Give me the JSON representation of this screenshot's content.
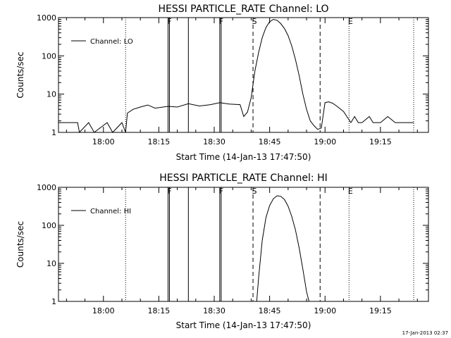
{
  "chart_data": [
    {
      "type": "line",
      "title": "HESSI PARTICLE_RATE Channel: LO",
      "xlabel": "Start Time (14-Jan-13 17:47:50)",
      "ylabel": "Counts/sec",
      "yscale": "log",
      "xlim": [
        "17:47:50",
        "19:28:00"
      ],
      "ylim": [
        1,
        1000
      ],
      "xticks": [
        "18:00",
        "18:15",
        "18:30",
        "18:45",
        "19:00",
        "19:15"
      ],
      "yticks": [
        "1",
        "10",
        "100",
        "1000"
      ],
      "legend": {
        "label": "Channel: LO",
        "placement": "top-left"
      },
      "markers": [
        {
          "label": "F",
          "time": "18:17:30",
          "style": "solid"
        },
        {
          "label": "",
          "time": "18:23:00",
          "style": "solid"
        },
        {
          "label": "F",
          "time": "18:31:30",
          "style": "solid"
        },
        {
          "label": "S",
          "time": "18:40:30",
          "style": "dashed"
        },
        {
          "label": "",
          "time": "18:58:40",
          "style": "dashed"
        },
        {
          "label": "E",
          "time": "19:06:30",
          "style": "dotted"
        },
        {
          "label": "",
          "time": "18:06:00",
          "style": "dotted"
        },
        {
          "label": "",
          "time": "19:24:00",
          "style": "dotted"
        }
      ],
      "series": [
        {
          "name": "Channel: LO",
          "x": [
            "17:47:50",
            "17:53:00",
            "17:53:30",
            "17:56:00",
            "17:57:30",
            "18:01:00",
            "18:02:30",
            "18:05:00",
            "18:06:00",
            "18:06:30",
            "18:08:00",
            "18:10:00",
            "18:12:00",
            "18:14:00",
            "18:17:30",
            "18:20:00",
            "18:23:00",
            "18:26:00",
            "18:29:00",
            "18:31:30",
            "18:34:00",
            "18:37:00",
            "18:38:00",
            "18:39:00",
            "18:40:00",
            "18:41:00",
            "18:42:00",
            "18:43:00",
            "18:44:00",
            "18:45:00",
            "18:46:00",
            "18:47:00",
            "18:48:00",
            "18:49:00",
            "18:50:00",
            "18:51:00",
            "18:52:00",
            "18:53:00",
            "18:54:00",
            "18:55:00",
            "18:56:00",
            "18:57:00",
            "18:58:00",
            "18:59:00",
            "19:00:00",
            "19:01:00",
            "19:02:00",
            "19:03:00",
            "19:05:00",
            "19:07:00",
            "19:08:00",
            "19:09:00",
            "19:10:00",
            "19:12:00",
            "19:13:00",
            "19:15:00",
            "19:17:00",
            "19:19:00",
            "19:22:00",
            "19:24:00"
          ],
          "values": [
            1.8,
            1.8,
            1,
            1.8,
            1,
            1.8,
            1,
            1.8,
            1,
            3.2,
            4,
            4.6,
            5.2,
            4.3,
            4.8,
            4.6,
            5.6,
            4.9,
            5.3,
            6,
            5.5,
            5.3,
            2.6,
            3.4,
            8,
            40,
            120,
            300,
            550,
            780,
            900,
            850,
            700,
            520,
            340,
            180,
            80,
            30,
            10,
            4,
            2,
            1.5,
            1.2,
            1.3,
            6,
            6.3,
            5.8,
            5,
            3.5,
            1.8,
            2.6,
            1.8,
            1.8,
            2.6,
            1.8,
            1.8,
            2.6,
            1.8,
            1.8,
            1.8
          ]
        }
      ]
    },
    {
      "type": "line",
      "title": "HESSI PARTICLE_RATE Channel: HI",
      "xlabel": "Start Time (14-Jan-13 17:47:50)",
      "ylabel": "Counts/sec",
      "yscale": "log",
      "xlim": [
        "17:47:50",
        "19:28:00"
      ],
      "ylim": [
        1,
        1000
      ],
      "xticks": [
        "18:00",
        "18:15",
        "18:30",
        "18:45",
        "19:00",
        "19:15"
      ],
      "yticks": [
        "1",
        "10",
        "100",
        "1000"
      ],
      "legend": {
        "label": "Channel: HI",
        "placement": "top-left"
      },
      "markers": [
        {
          "label": "F",
          "time": "18:17:30",
          "style": "solid"
        },
        {
          "label": "",
          "time": "18:23:00",
          "style": "solid"
        },
        {
          "label": "F",
          "time": "18:31:30",
          "style": "solid"
        },
        {
          "label": "S",
          "time": "18:40:30",
          "style": "dashed"
        },
        {
          "label": "",
          "time": "18:58:40",
          "style": "dashed"
        },
        {
          "label": "E",
          "time": "19:06:30",
          "style": "dotted"
        },
        {
          "label": "",
          "time": "18:06:00",
          "style": "dotted"
        },
        {
          "label": "",
          "time": "19:24:00",
          "style": "dotted"
        }
      ],
      "series": [
        {
          "name": "Channel: HI",
          "x": [
            "18:41:30",
            "18:42:00",
            "18:43:00",
            "18:44:00",
            "18:45:00",
            "18:46:00",
            "18:47:00",
            "18:48:00",
            "18:49:00",
            "18:50:00",
            "18:51:00",
            "18:52:00",
            "18:53:00",
            "18:54:00",
            "18:55:00",
            "18:55:40"
          ],
          "values": [
            1,
            4,
            40,
            160,
            330,
            500,
            600,
            580,
            480,
            320,
            170,
            75,
            25,
            7,
            1.8,
            1
          ]
        }
      ]
    }
  ],
  "timestamp": "17-Jan-2013 02:37"
}
